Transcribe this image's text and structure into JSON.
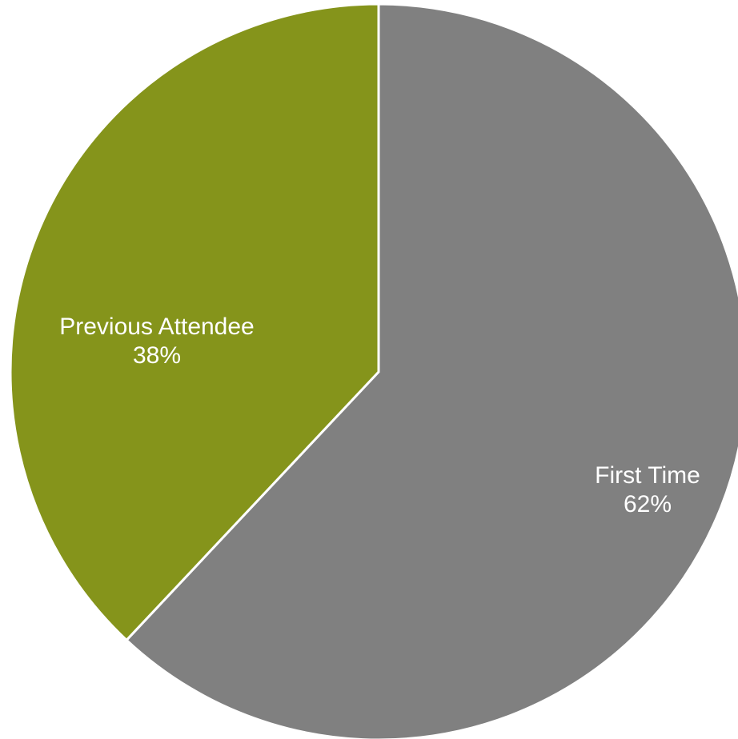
{
  "chart_data": {
    "type": "pie",
    "title": "",
    "start_angle_deg": 0,
    "direction": "clockwise",
    "slices": [
      {
        "label": "First Time",
        "value": 62,
        "display_value": "62%",
        "color": "#808080"
      },
      {
        "label": "Previous Attendee",
        "value": 38,
        "display_value": "38%",
        "color": "#85941b"
      }
    ],
    "label_color": "#ffffff",
    "legend": "none"
  }
}
